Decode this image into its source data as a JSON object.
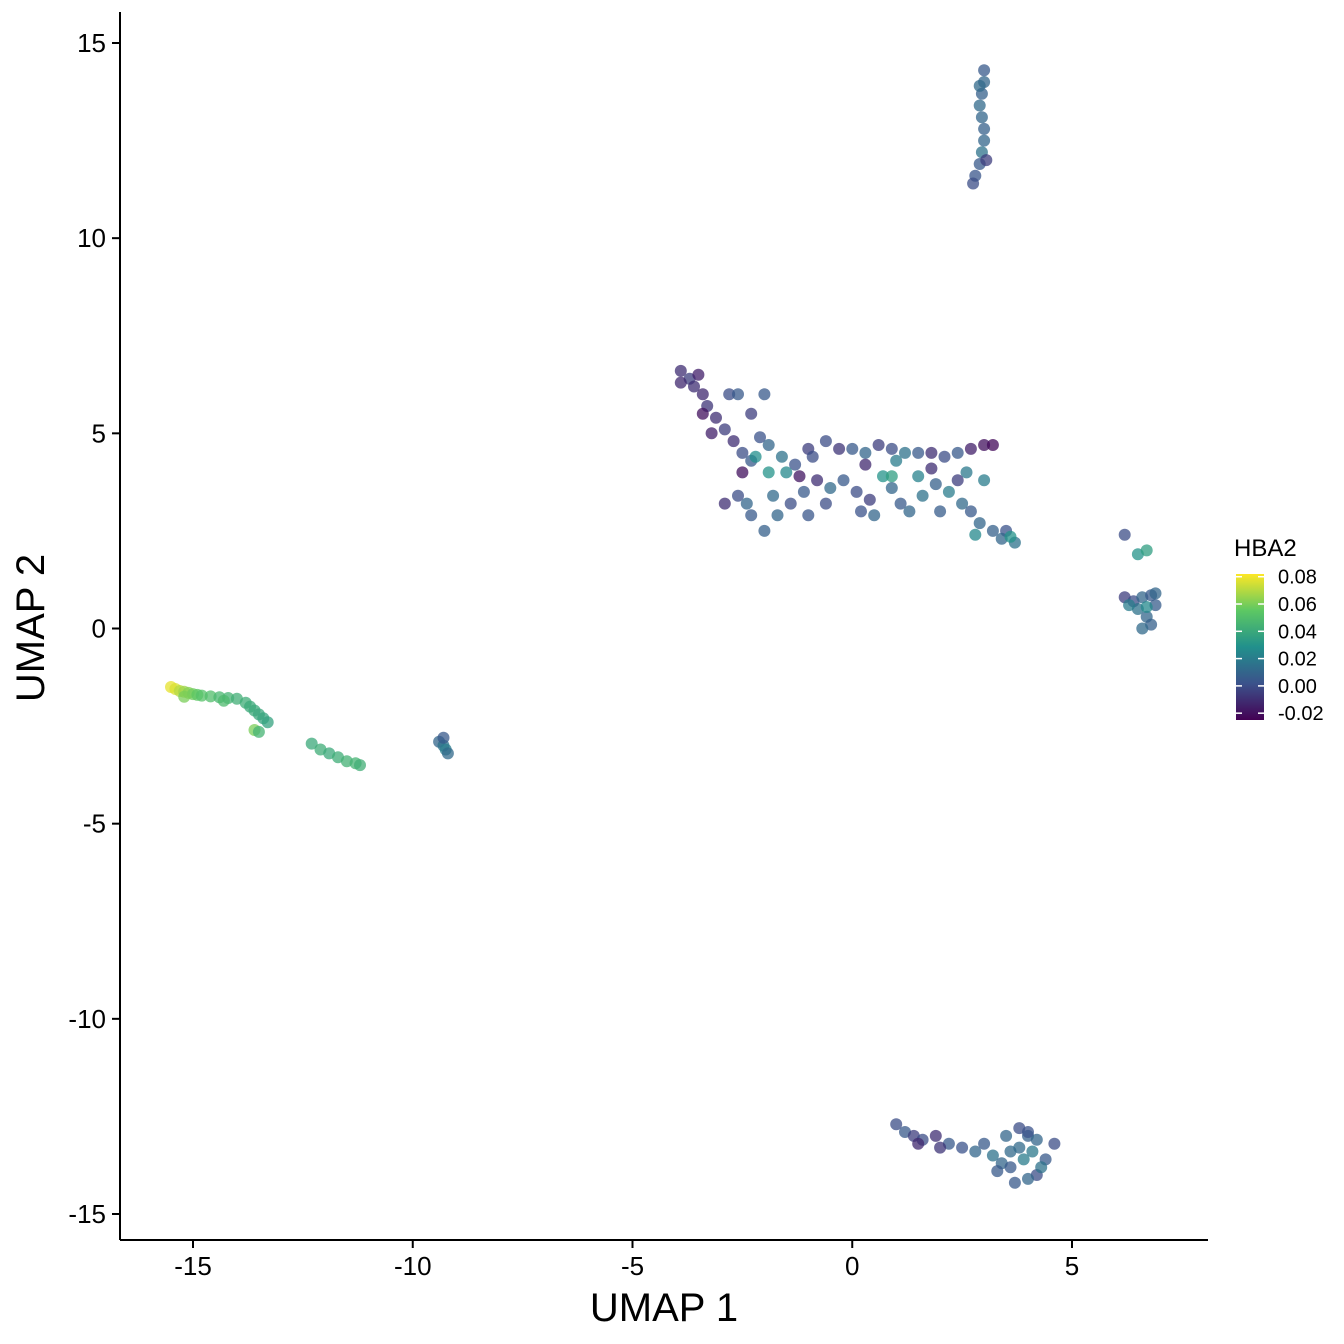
{
  "chart_data": {
    "type": "scatter",
    "xlabel": "UMAP 1",
    "ylabel": "UMAP 2",
    "xlim": [
      -16.6,
      8.2
    ],
    "ylim": [
      -15.7,
      15.8
    ],
    "x_ticks": [
      -15,
      -10,
      -5,
      0,
      5
    ],
    "x_tick_labels": [
      "-15",
      "-10",
      "-5",
      "0",
      "5"
    ],
    "y_ticks": [
      -15,
      -10,
      -5,
      0,
      5,
      10,
      15
    ],
    "y_tick_labels": [
      "-15",
      "-10",
      "-5",
      "0",
      "5",
      "10",
      "15"
    ],
    "grid": false,
    "legend": {
      "title": "HBA2",
      "placement": "right",
      "type": "colorbar",
      "range": [
        -0.025,
        0.082
      ],
      "ticks": [
        0.08,
        0.06,
        0.04,
        0.02,
        0.0,
        -0.02
      ],
      "tick_labels": [
        "0.08",
        "0.06",
        "0.04",
        "0.02",
        "0.00",
        "-0.02"
      ],
      "colormap": "viridis",
      "colors": [
        "#440154",
        "#3b528b",
        "#21908c",
        "#5dc863",
        "#fde725"
      ]
    },
    "points": [
      [
        -15.5,
        -1.5,
        0.078
      ],
      [
        -15.4,
        -1.55,
        0.076
      ],
      [
        -15.3,
        -1.6,
        0.07
      ],
      [
        -15.2,
        -1.62,
        0.066
      ],
      [
        -15.1,
        -1.65,
        0.062
      ],
      [
        -15.0,
        -1.68,
        0.058
      ],
      [
        -14.9,
        -1.7,
        0.055
      ],
      [
        -14.8,
        -1.72,
        0.052
      ],
      [
        -14.6,
        -1.74,
        0.05
      ],
      [
        -14.4,
        -1.76,
        0.047
      ],
      [
        -14.2,
        -1.78,
        0.045
      ],
      [
        -14.0,
        -1.8,
        0.043
      ],
      [
        -13.8,
        -1.9,
        0.042
      ],
      [
        -13.7,
        -2.0,
        0.04
      ],
      [
        -13.6,
        -2.1,
        0.04
      ],
      [
        -13.5,
        -2.2,
        0.039
      ],
      [
        -13.4,
        -2.3,
        0.038
      ],
      [
        -13.3,
        -2.4,
        0.037
      ],
      [
        -13.6,
        -2.6,
        0.06
      ],
      [
        -13.5,
        -2.65,
        0.045
      ],
      [
        -14.3,
        -1.85,
        0.048
      ],
      [
        -15.2,
        -1.75,
        0.06
      ],
      [
        -12.3,
        -2.95,
        0.04
      ],
      [
        -12.1,
        -3.1,
        0.042
      ],
      [
        -11.9,
        -3.2,
        0.04
      ],
      [
        -11.7,
        -3.3,
        0.042
      ],
      [
        -11.5,
        -3.4,
        0.044
      ],
      [
        -11.3,
        -3.45,
        0.045
      ],
      [
        -11.2,
        -3.5,
        0.043
      ],
      [
        -9.4,
        -2.9,
        0.01
      ],
      [
        -9.3,
        -3.0,
        0.015
      ],
      [
        -9.25,
        -3.1,
        0.02
      ],
      [
        -9.3,
        -2.8,
        0.005
      ],
      [
        -9.2,
        -3.2,
        0.012
      ],
      [
        3.0,
        14.3,
        0.005
      ],
      [
        3.0,
        14.0,
        0.01
      ],
      [
        2.95,
        13.7,
        0.008
      ],
      [
        2.9,
        13.4,
        0.012
      ],
      [
        2.95,
        13.1,
        0.01
      ],
      [
        3.0,
        12.8,
        0.008
      ],
      [
        3.0,
        12.5,
        0.01
      ],
      [
        2.95,
        12.2,
        0.015
      ],
      [
        2.9,
        11.9,
        0.005
      ],
      [
        2.8,
        11.6,
        0.003
      ],
      [
        2.75,
        11.4,
        0.0
      ],
      [
        3.05,
        12.0,
        -0.005
      ],
      [
        2.9,
        13.9,
        0.012
      ],
      [
        -3.9,
        6.6,
        -0.01
      ],
      [
        -3.7,
        6.4,
        -0.005
      ],
      [
        -3.6,
        6.2,
        -0.01
      ],
      [
        -3.4,
        6.0,
        -0.012
      ],
      [
        -3.3,
        5.7,
        -0.008
      ],
      [
        -3.1,
        5.4,
        -0.01
      ],
      [
        -2.9,
        5.1,
        -0.005
      ],
      [
        -2.7,
        4.8,
        -0.01
      ],
      [
        -2.5,
        4.5,
        0.0
      ],
      [
        -2.3,
        4.3,
        0.005
      ],
      [
        -3.9,
        6.3,
        -0.012
      ],
      [
        -3.5,
        6.5,
        -0.015
      ],
      [
        -2.8,
        6.0,
        0.0
      ],
      [
        -2.6,
        6.0,
        0.005
      ],
      [
        -2.3,
        5.5,
        -0.005
      ],
      [
        -2.1,
        4.9,
        0.002
      ],
      [
        -1.9,
        4.7,
        0.01
      ],
      [
        -1.6,
        4.4,
        0.015
      ],
      [
        -1.3,
        4.2,
        0.002
      ],
      [
        -1.0,
        4.6,
        -0.005
      ],
      [
        -0.6,
        4.8,
        0.0
      ],
      [
        -0.3,
        4.6,
        -0.008
      ],
      [
        0.0,
        4.6,
        0.005
      ],
      [
        0.3,
        4.5,
        0.01
      ],
      [
        0.6,
        4.7,
        -0.005
      ],
      [
        0.9,
        4.6,
        0.0
      ],
      [
        1.2,
        4.5,
        0.015
      ],
      [
        1.5,
        4.5,
        0.005
      ],
      [
        1.8,
        4.5,
        -0.01
      ],
      [
        2.1,
        4.4,
        0.0
      ],
      [
        2.4,
        4.5,
        0.005
      ],
      [
        2.7,
        4.6,
        -0.015
      ],
      [
        3.0,
        4.7,
        -0.02
      ],
      [
        3.2,
        4.7,
        -0.022
      ],
      [
        -2.6,
        3.4,
        0.0
      ],
      [
        -2.4,
        3.2,
        0.01
      ],
      [
        -2.3,
        2.9,
        0.005
      ],
      [
        -2.0,
        2.5,
        0.008
      ],
      [
        -1.7,
        2.9,
        0.01
      ],
      [
        -1.4,
        3.2,
        0.0
      ],
      [
        -1.1,
        3.5,
        0.005
      ],
      [
        -0.8,
        3.8,
        -0.01
      ],
      [
        -0.5,
        3.6,
        0.012
      ],
      [
        -0.2,
        3.8,
        0.005
      ],
      [
        0.1,
        3.5,
        0.0
      ],
      [
        0.4,
        3.3,
        -0.005
      ],
      [
        0.7,
        3.9,
        0.03
      ],
      [
        0.9,
        3.6,
        0.01
      ],
      [
        1.1,
        3.2,
        0.005
      ],
      [
        1.3,
        3.0,
        0.01
      ],
      [
        1.6,
        3.4,
        0.015
      ],
      [
        1.9,
        3.7,
        0.008
      ],
      [
        2.2,
        3.5,
        0.02
      ],
      [
        2.5,
        3.2,
        0.012
      ],
      [
        2.7,
        3.0,
        0.005
      ],
      [
        2.9,
        2.7,
        0.01
      ],
      [
        3.2,
        2.5,
        0.008
      ],
      [
        3.5,
        2.5,
        0.002
      ],
      [
        3.7,
        2.2,
        0.015
      ],
      [
        3.4,
        2.3,
        0.01
      ],
      [
        -1.9,
        4.0,
        0.03
      ],
      [
        -2.2,
        4.4,
        0.028
      ],
      [
        -1.5,
        4.0,
        0.025
      ],
      [
        0.9,
        3.9,
        0.035
      ],
      [
        1.5,
        3.9,
        0.022
      ],
      [
        2.6,
        4.0,
        0.018
      ],
      [
        3.0,
        3.8,
        0.02
      ],
      [
        0.2,
        3.0,
        0.002
      ],
      [
        -0.6,
        3.2,
        0.0
      ],
      [
        2.8,
        2.4,
        0.025
      ],
      [
        3.6,
        2.35,
        0.03
      ],
      [
        -2.9,
        3.2,
        -0.01
      ],
      [
        -2.5,
        4.0,
        -0.02
      ],
      [
        -1.2,
        3.9,
        -0.018
      ],
      [
        0.3,
        4.2,
        -0.012
      ],
      [
        1.8,
        4.1,
        -0.01
      ],
      [
        2.4,
        3.8,
        -0.005
      ],
      [
        -3.4,
        5.5,
        -0.02
      ],
      [
        -3.2,
        5.0,
        -0.015
      ],
      [
        -2.0,
        6.0,
        0.005
      ],
      [
        -1.8,
        3.4,
        0.012
      ],
      [
        -0.9,
        4.4,
        0.0
      ],
      [
        1.0,
        4.3,
        0.02
      ],
      [
        2.0,
        3.0,
        0.006
      ],
      [
        -1.0,
        2.9,
        0.004
      ],
      [
        0.5,
        2.9,
        0.01
      ],
      [
        6.2,
        2.4,
        0.0
      ],
      [
        6.5,
        1.9,
        0.03
      ],
      [
        6.7,
        2.0,
        0.035
      ],
      [
        6.2,
        0.8,
        -0.005
      ],
      [
        6.4,
        0.7,
        0.0
      ],
      [
        6.6,
        0.8,
        0.01
      ],
      [
        6.8,
        0.85,
        0.005
      ],
      [
        6.9,
        0.9,
        0.01
      ],
      [
        6.5,
        0.5,
        0.015
      ],
      [
        6.7,
        0.3,
        0.01
      ],
      [
        6.8,
        0.1,
        0.008
      ],
      [
        6.6,
        0.0,
        0.012
      ],
      [
        6.3,
        0.6,
        0.02
      ],
      [
        6.9,
        0.6,
        0.006
      ],
      [
        6.7,
        0.55,
        0.025
      ],
      [
        1.0,
        -12.7,
        0.0
      ],
      [
        1.2,
        -12.9,
        0.005
      ],
      [
        1.4,
        -13.0,
        -0.005
      ],
      [
        1.6,
        -13.1,
        0.0
      ],
      [
        1.9,
        -13.0,
        -0.01
      ],
      [
        2.2,
        -13.2,
        0.005
      ],
      [
        2.5,
        -13.3,
        0.002
      ],
      [
        2.8,
        -13.4,
        0.01
      ],
      [
        3.0,
        -13.2,
        0.005
      ],
      [
        3.2,
        -13.5,
        0.015
      ],
      [
        3.4,
        -13.7,
        0.01
      ],
      [
        3.6,
        -13.8,
        0.005
      ],
      [
        3.8,
        -13.3,
        0.012
      ],
      [
        4.0,
        -13.0,
        0.008
      ],
      [
        4.2,
        -13.1,
        0.01
      ],
      [
        4.4,
        -13.6,
        0.005
      ],
      [
        4.2,
        -14.0,
        0.0
      ],
      [
        4.0,
        -14.1,
        0.01
      ],
      [
        3.7,
        -14.2,
        0.005
      ],
      [
        3.8,
        -12.8,
        0.0
      ],
      [
        4.0,
        -12.9,
        0.002
      ],
      [
        3.5,
        -13.0,
        0.01
      ],
      [
        4.3,
        -13.8,
        0.015
      ],
      [
        4.6,
        -13.2,
        0.0
      ],
      [
        1.5,
        -13.2,
        -0.012
      ],
      [
        2.0,
        -13.3,
        -0.008
      ],
      [
        3.3,
        -13.9,
        0.005
      ],
      [
        3.9,
        -13.6,
        0.02
      ],
      [
        4.1,
        -13.4,
        0.018
      ],
      [
        3.6,
        -13.4,
        0.012
      ]
    ]
  }
}
